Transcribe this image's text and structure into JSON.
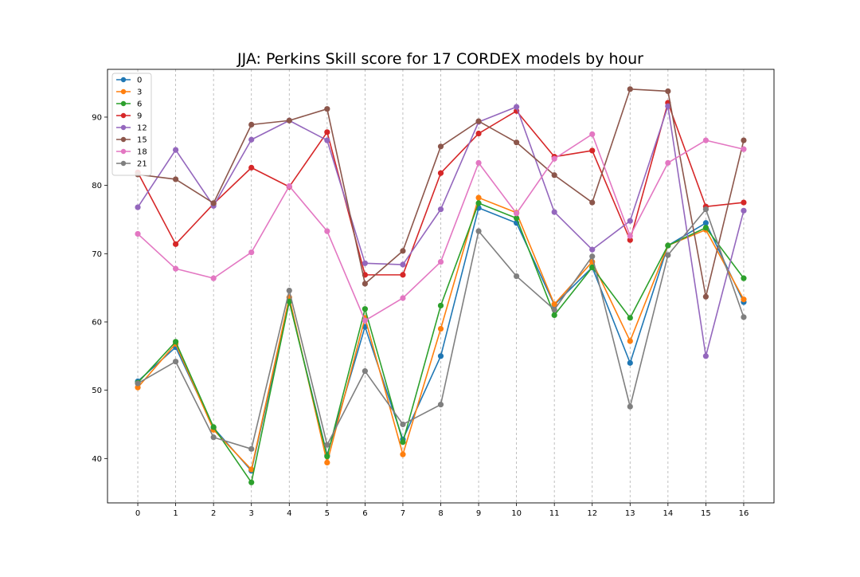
{
  "chart_data": {
    "type": "line",
    "title": "JJA: Perkins Skill score for 17 CORDEX models by hour",
    "xlabel": "",
    "ylabel": "",
    "x": [
      0,
      1,
      2,
      3,
      4,
      5,
      6,
      7,
      8,
      9,
      10,
      11,
      12,
      13,
      14,
      15,
      16
    ],
    "xlim": [
      -0.8,
      16.8
    ],
    "ylim": [
      33.5,
      97.0
    ],
    "yticks": [
      40,
      50,
      60,
      70,
      80,
      90
    ],
    "grid": "vertical dashed at x ticks",
    "legend_position": "top-left",
    "series": [
      {
        "name": "0",
        "color": "#1f77b4",
        "values": [
          51.3,
          56.3,
          44.5,
          38.2,
          63.0,
          40.5,
          59.3,
          42.8,
          55.0,
          76.7,
          74.5,
          62.5,
          68.0,
          54.0,
          71.2,
          74.5,
          62.9
        ]
      },
      {
        "name": "3",
        "color": "#ff7f0e",
        "values": [
          50.4,
          56.8,
          44.2,
          38.4,
          63.6,
          39.4,
          60.6,
          40.6,
          59.0,
          78.2,
          76.0,
          62.6,
          68.8,
          57.2,
          71.2,
          73.5,
          63.3
        ]
      },
      {
        "name": "6",
        "color": "#2ca02c",
        "values": [
          51.1,
          57.1,
          44.6,
          36.5,
          63.0,
          40.3,
          61.9,
          42.4,
          62.4,
          77.4,
          75.2,
          61.0,
          68.0,
          60.6,
          71.2,
          73.8,
          66.4
        ]
      },
      {
        "name": "9",
        "color": "#d62728",
        "values": [
          81.9,
          71.4,
          77.3,
          82.6,
          79.8,
          87.8,
          66.9,
          66.9,
          81.8,
          87.6,
          90.9,
          84.2,
          85.1,
          72.0,
          92.1,
          76.9,
          77.5
        ]
      },
      {
        "name": "12",
        "color": "#9467bd",
        "values": [
          76.8,
          85.2,
          77.0,
          86.7,
          89.5,
          86.6,
          68.6,
          68.4,
          76.5,
          89.3,
          91.5,
          76.1,
          70.6,
          74.8,
          91.6,
          55.0,
          76.3
        ]
      },
      {
        "name": "15",
        "color": "#8c564b",
        "values": [
          81.6,
          80.9,
          77.4,
          88.9,
          89.5,
          91.2,
          65.6,
          70.4,
          85.7,
          89.4,
          86.3,
          81.5,
          77.5,
          94.1,
          93.8,
          63.7,
          86.6
        ]
      },
      {
        "name": "18",
        "color": "#e377c2",
        "values": [
          72.9,
          67.8,
          66.4,
          70.2,
          79.9,
          73.3,
          60.2,
          63.5,
          68.8,
          83.3,
          75.9,
          83.9,
          87.5,
          72.6,
          83.3,
          86.6,
          85.3
        ]
      },
      {
        "name": "21",
        "color": "#7f7f7f",
        "values": [
          51.0,
          54.2,
          43.1,
          41.4,
          64.6,
          42.0,
          52.8,
          45.0,
          47.9,
          73.3,
          66.7,
          61.8,
          69.6,
          47.6,
          69.8,
          76.5,
          60.7
        ]
      }
    ]
  }
}
